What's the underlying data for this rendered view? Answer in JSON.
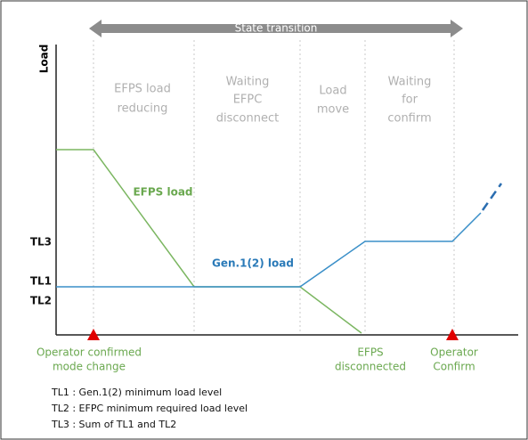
{
  "transition": "State transition",
  "y_axis_label": "Load",
  "phases": [
    {
      "lines": [
        "EFPS load",
        "reducing"
      ]
    },
    {
      "lines": [
        "Waiting",
        "EFPC",
        "disconnect"
      ]
    },
    {
      "lines": [
        "Load",
        "move"
      ]
    },
    {
      "lines": [
        "Waiting",
        "for",
        "confirm"
      ]
    }
  ],
  "levels": [
    "TL3",
    "TL1",
    "TL2"
  ],
  "series_labels": {
    "efps": "EFPS load",
    "gen": "Gen.1(2) load"
  },
  "events": [
    {
      "lines": [
        "Operator confirmed",
        "mode change"
      ]
    },
    {
      "lines": [
        "EFPS",
        "disconnected"
      ]
    },
    {
      "lines": [
        "Operator",
        "Confirm"
      ]
    }
  ],
  "notes": [
    "TL1 : Gen.1(2) minimum load level",
    "TL2 : EFPC minimum required load level",
    "TL3 : Sum of TL1 and TL2"
  ]
}
